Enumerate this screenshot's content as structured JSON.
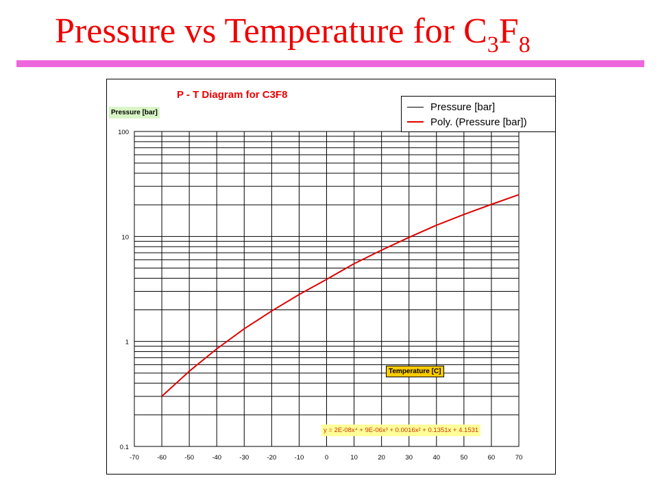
{
  "slide": {
    "title_main": "Pressure vs Temperature for C",
    "title_sub1": "3",
    "title_mid": "F",
    "title_sub2": "8",
    "accent_color": "#ee66dd",
    "title_color": "#ee0000"
  },
  "chart_data": {
    "type": "line",
    "title": "P - T Diagram for  C3F8",
    "ylabel": "Pressure [bar]",
    "xlabel": "Temperature [C]",
    "y_scale": "log",
    "xlim": [
      -70,
      70
    ],
    "ylim": [
      0.1,
      100
    ],
    "x_ticks": [
      "-70",
      "-60",
      "-50",
      "-40",
      "-30",
      "-20",
      "-10",
      "0",
      "10",
      "20",
      "30",
      "40",
      "50",
      "60",
      "70"
    ],
    "y_ticks": [
      "0.1",
      "1",
      "10",
      "100"
    ],
    "grid": true,
    "legend_position": "top-right",
    "legend": [
      "Pressure [bar]",
      "Poly. (Pressure [bar])"
    ],
    "series": [
      {
        "name": "Poly. (Pressure [bar])",
        "color": "#dd0000",
        "x": [
          -60,
          -50,
          -40,
          -30,
          -20,
          -10,
          0,
          10,
          20,
          30,
          40,
          50,
          60,
          70
        ],
        "y": [
          0.3,
          0.52,
          0.85,
          1.32,
          1.95,
          2.8,
          3.9,
          5.5,
          7.4,
          9.8,
          12.8,
          16.2,
          20.2,
          25.0
        ]
      }
    ],
    "trendline_equation": "y = 2E-08x⁴ + 9E-06x³ + 0.0016x² + 0.1351x + 4.1531"
  }
}
